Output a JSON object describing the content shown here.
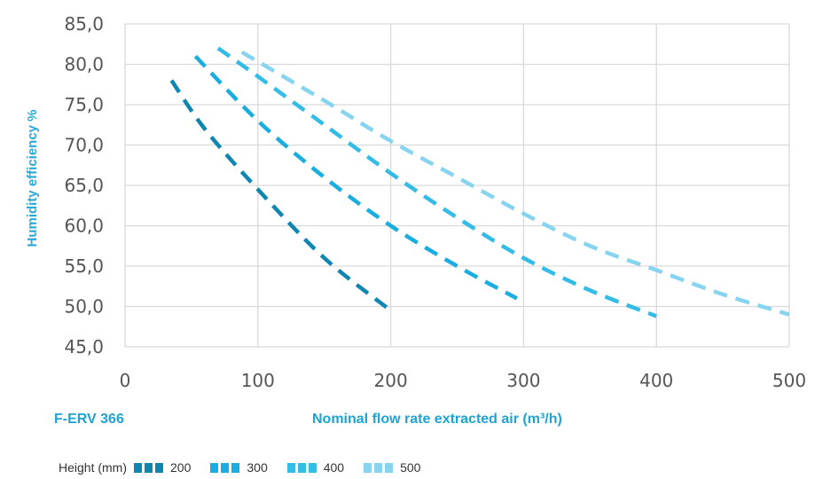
{
  "chart_data": {
    "type": "line",
    "ylabel": "Humidity efficiency %",
    "xlabel": "Nominal flow rate extracted air (m³/h)",
    "model": "F-ERV 366",
    "xlim": [
      0,
      500
    ],
    "ylim": [
      45,
      85
    ],
    "x_ticks": [
      "0",
      "100",
      "200",
      "300",
      "400",
      "500"
    ],
    "y_ticks": [
      "45,0",
      "50,0",
      "55,0",
      "60,0",
      "65,0",
      "70,0",
      "75,0",
      "80,0",
      "85,0"
    ],
    "grid": true,
    "line_style": "dashed",
    "legend": {
      "title": "Height (mm)",
      "placement": "bottom-left"
    },
    "series": [
      {
        "name": "200",
        "color": "#0e86b0",
        "x": [
          35,
          60,
          100,
          150,
          200
        ],
        "y": [
          78,
          72,
          64.5,
          56,
          49.5
        ]
      },
      {
        "name": "300",
        "color": "#1aaee0",
        "x": [
          53,
          100,
          150,
          200,
          250,
          295
        ],
        "y": [
          81,
          73,
          66,
          60,
          55,
          51
        ]
      },
      {
        "name": "400",
        "color": "#33bde6",
        "x": [
          70,
          100,
          150,
          200,
          250,
          300,
          350,
          400
        ],
        "y": [
          82,
          78.5,
          72.5,
          66.5,
          61,
          56,
          52,
          48.8
        ]
      },
      {
        "name": "500",
        "color": "#86d4ef",
        "x": [
          88,
          150,
          200,
          250,
          300,
          350,
          400,
          450,
          500
        ],
        "y": [
          81.5,
          75.5,
          70.5,
          66,
          61.5,
          57.5,
          54.5,
          51.5,
          49
        ]
      }
    ]
  }
}
